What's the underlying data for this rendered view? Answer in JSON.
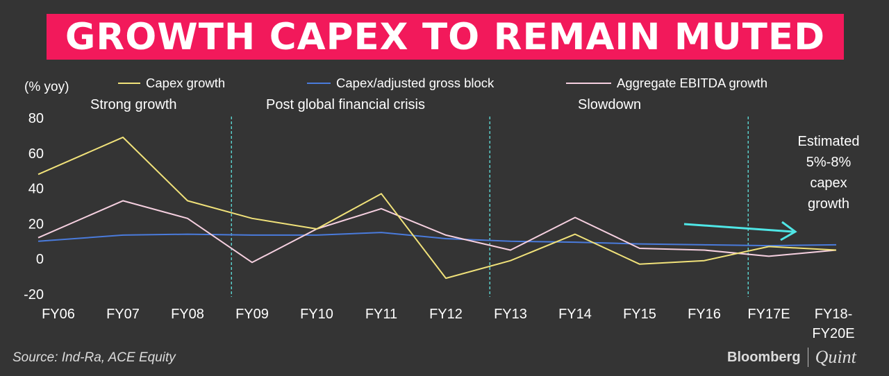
{
  "chart_data": {
    "type": "line",
    "title": "GROWTH CAPEX TO REMAIN MUTED",
    "ylabel": "(% yoy)",
    "categories": [
      "FY06",
      "FY07",
      "FY08",
      "FY09",
      "FY10",
      "FY11",
      "FY12",
      "FY13",
      "FY14",
      "FY15",
      "FY16",
      "FY17E",
      "FY18-FY20E"
    ],
    "category_lines": [
      [
        "FY06"
      ],
      [
        "FY07"
      ],
      [
        "FY08"
      ],
      [
        "FY09"
      ],
      [
        "FY10"
      ],
      [
        "FY11"
      ],
      [
        "FY12"
      ],
      [
        "FY13"
      ],
      [
        "FY14"
      ],
      [
        "FY15"
      ],
      [
        "FY16"
      ],
      [
        "FY17E"
      ],
      [
        "FY18-",
        "FY20E"
      ]
    ],
    "ylim": [
      -20,
      80
    ],
    "yticks": [
      80,
      60,
      40,
      20,
      0,
      -20
    ],
    "ytick_labels": [
      "80",
      "60",
      "40",
      "20",
      "0",
      "-20"
    ],
    "grid": false,
    "legend_position": "top",
    "series": [
      {
        "name": "Capex growth",
        "color": "#f1e27a",
        "values": [
          48,
          69,
          33,
          23,
          17,
          37,
          -11,
          -1,
          14,
          -3,
          -1,
          7,
          5
        ]
      },
      {
        "name": "Capex/adjusted gross block",
        "color": "#4a7bdc",
        "values": [
          10,
          13.5,
          14,
          13.5,
          13.5,
          15,
          11.5,
          10,
          9.5,
          8.5,
          8,
          7.5,
          8
        ]
      },
      {
        "name": "Aggregate EBITDA growth",
        "color": "#f6d0e0",
        "values": [
          12,
          33,
          23,
          -2,
          17,
          28.5,
          13.5,
          5,
          23.5,
          6,
          5,
          1.5,
          5
        ]
      }
    ],
    "phases": [
      {
        "label": "Strong growth",
        "boundary_after": "FY08"
      },
      {
        "label": "Post global financial crisis",
        "boundary_after": "FY12"
      },
      {
        "label": "Slowdown",
        "boundary_after": "FY16"
      }
    ],
    "annotation": {
      "lines": [
        "Estimated",
        "5%-8%",
        "capex",
        "growth"
      ],
      "arrow_color": "#4fe6e6"
    }
  },
  "source": "Source: Ind-Ra, ACE Equity",
  "brand": {
    "name": "Bloomberg",
    "partner": "Quint"
  }
}
